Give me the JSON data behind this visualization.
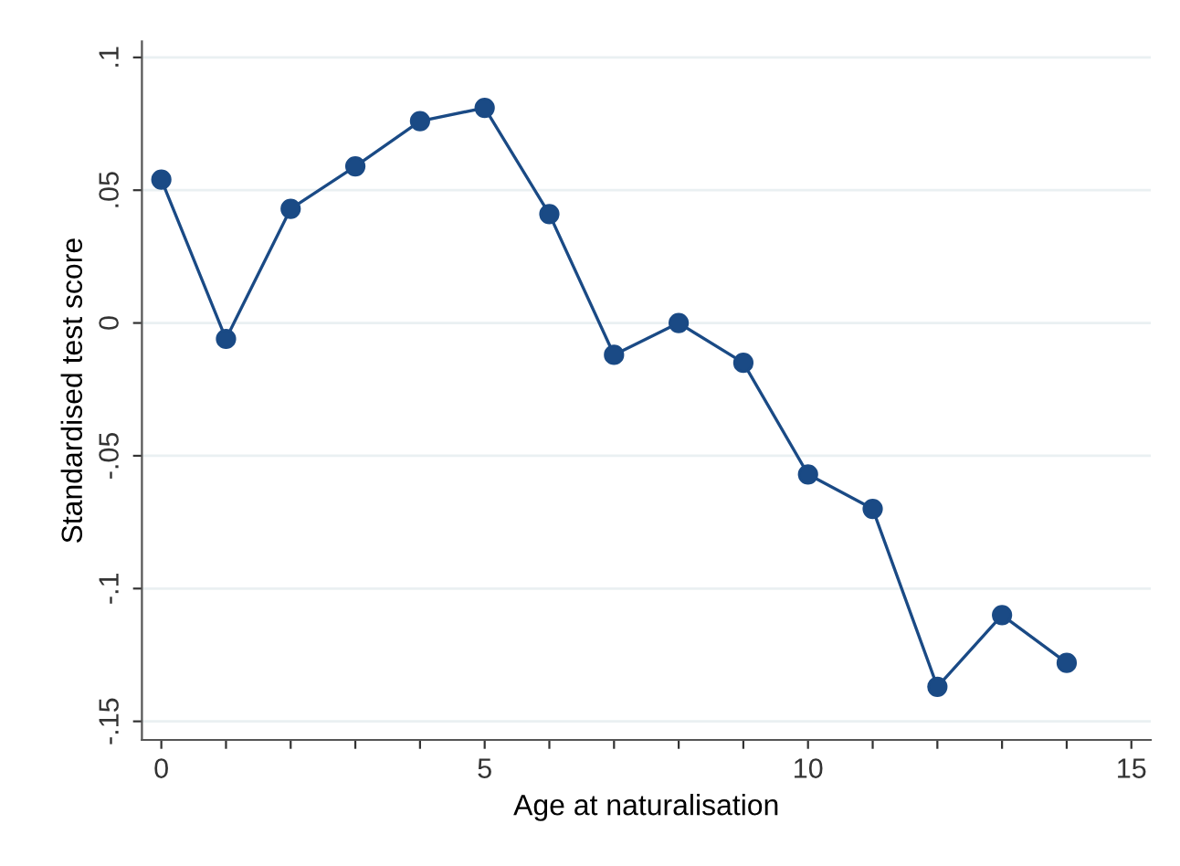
{
  "chart_data": {
    "type": "line",
    "xlabel": "Age at naturalisation",
    "ylabel": "Standardised test score",
    "x": [
      0,
      1,
      2,
      3,
      4,
      5,
      6,
      7,
      8,
      9,
      10,
      11,
      12,
      13,
      14
    ],
    "series": [
      {
        "color": "#1a4a85",
        "values": [
          0.054,
          -0.006,
          0.043,
          0.059,
          0.076,
          0.081,
          0.041,
          -0.012,
          0.0,
          -0.015,
          -0.057,
          -0.07,
          -0.137,
          -0.11,
          -0.128
        ]
      }
    ],
    "marker": "circle",
    "line_style": "solid",
    "grid": "y",
    "xlim": [
      -0.3,
      15.3
    ],
    "ylim": [
      -0.157,
      0.106
    ],
    "xticks": [
      0,
      {
        "value": 1,
        "label": null
      },
      {
        "value": 2,
        "label": null
      },
      {
        "value": 3,
        "label": null
      },
      {
        "value": 4,
        "label": null
      },
      5,
      {
        "value": 6,
        "label": null
      },
      {
        "value": 7,
        "label": null
      },
      {
        "value": 8,
        "label": null
      },
      {
        "value": 9,
        "label": null
      },
      10,
      {
        "value": 11,
        "label": null
      },
      {
        "value": 12,
        "label": null
      },
      {
        "value": 13,
        "label": null
      },
      {
        "value": 14,
        "label": null
      },
      15
    ],
    "yticks": [
      {
        "value": 0.1,
        "label": ".1"
      },
      {
        "value": 0.05,
        "label": ".05"
      },
      0,
      {
        "value": -0.05,
        "label": "-.05"
      },
      {
        "value": -0.1,
        "label": "-.1"
      },
      {
        "value": -0.15,
        "label": "-.15"
      }
    ]
  }
}
